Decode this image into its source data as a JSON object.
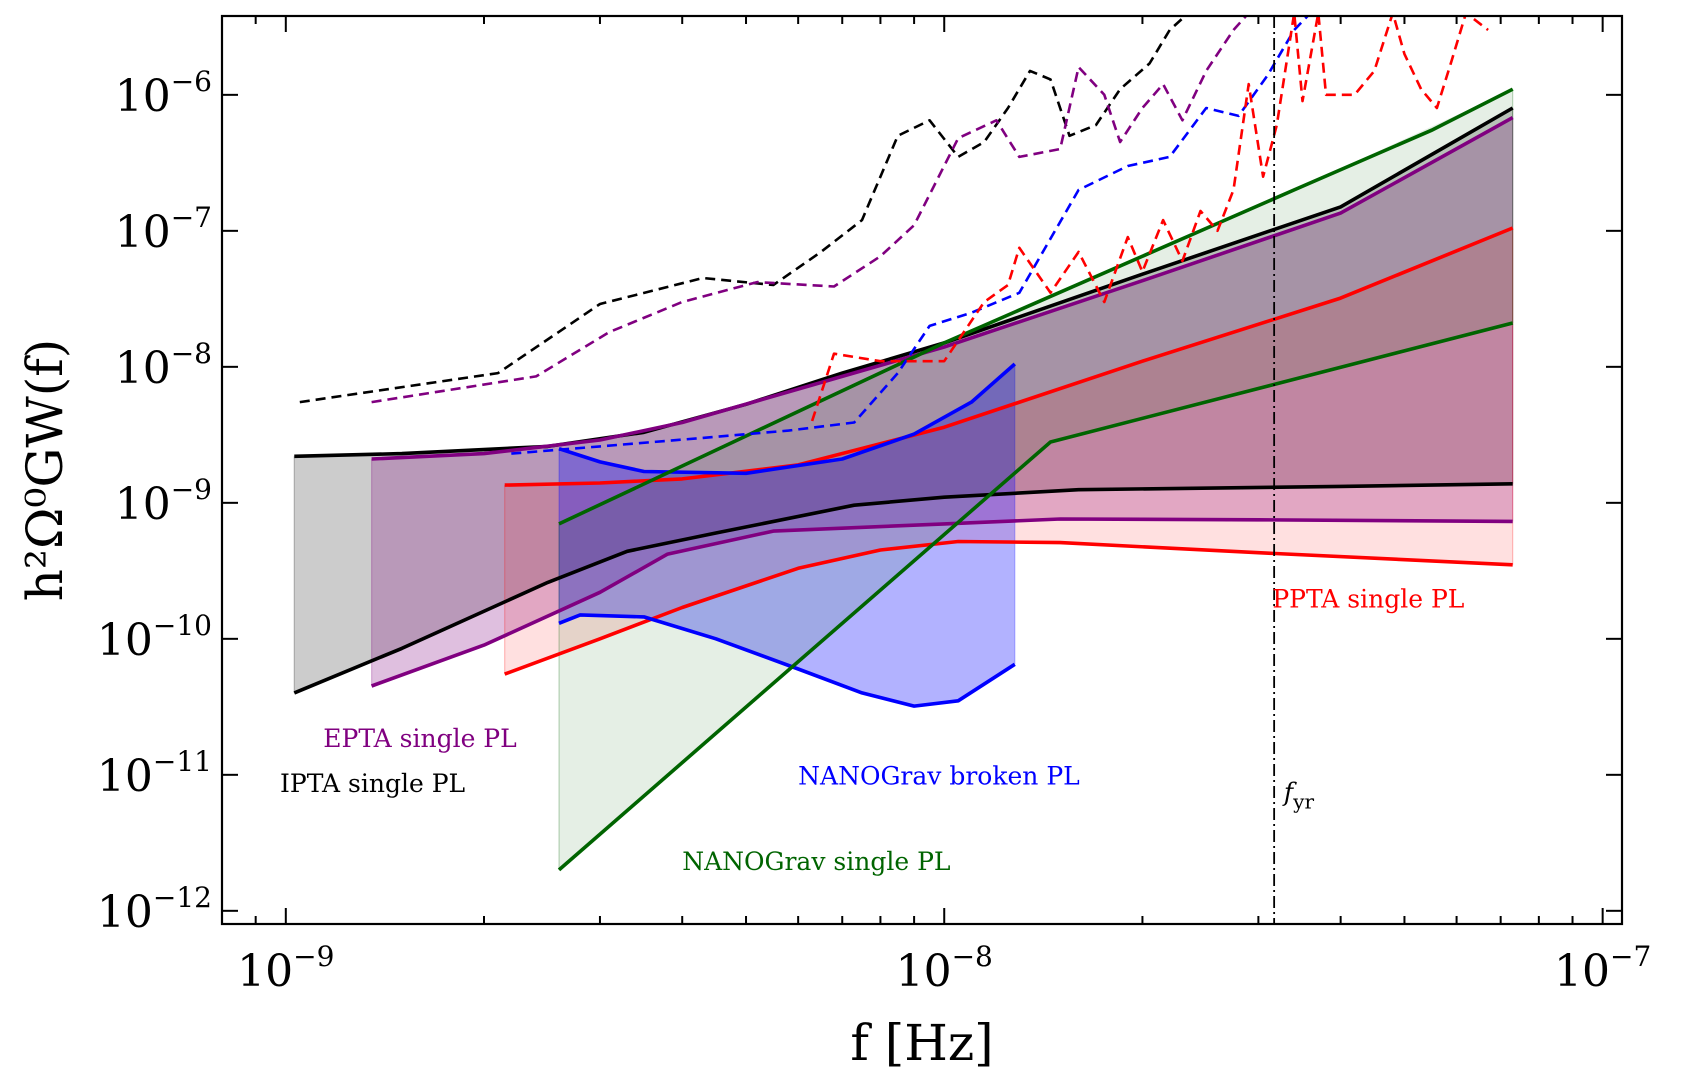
{
  "chart_data": {
    "type": "line",
    "xlabel": "f [Hz]",
    "ylabel": "h²Ω⁰GW(f)",
    "xscale": "log",
    "yscale": "log",
    "xlim": [
      8e-10,
      1.07e-07
    ],
    "ylim": [
      8e-13,
      3.8e-06
    ],
    "grid": false,
    "x_ticks": [
      {
        "value": 1e-09,
        "base": "10",
        "exp": "−9"
      },
      {
        "value": 1e-08,
        "base": "10",
        "exp": "−8"
      },
      {
        "value": 1e-07,
        "base": "10",
        "exp": "−7"
      }
    ],
    "y_ticks": [
      {
        "value": 1e-06,
        "base": "10",
        "exp": "−6"
      },
      {
        "value": 1e-07,
        "base": "10",
        "exp": "−7"
      },
      {
        "value": 1e-08,
        "base": "10",
        "exp": "−8"
      },
      {
        "value": 1e-09,
        "base": "10",
        "exp": "−9"
      },
      {
        "value": 1e-10,
        "base": "10",
        "exp": "−10"
      },
      {
        "value": 1e-11,
        "base": "10",
        "exp": "−11"
      },
      {
        "value": 1e-12,
        "base": "10",
        "exp": "−12"
      }
    ],
    "bands": [
      {
        "key": "ipta",
        "color": "#000000",
        "fill_opacity": 0.2,
        "upper": [
          [
            1.03e-09,
            2.2e-09
          ],
          [
            1.5e-09,
            2.3e-09
          ],
          [
            2.5e-09,
            2.6e-09
          ],
          [
            3.5e-09,
            3.3e-09
          ],
          [
            5e-09,
            5.3e-09
          ],
          [
            7e-09,
            9e-09
          ],
          [
            1e-08,
            1.5e-08
          ],
          [
            2e-08,
            4.8e-08
          ],
          [
            4e-08,
            1.5e-07
          ],
          [
            7.3e-08,
            8e-07
          ]
        ],
        "lower": [
          [
            1.03e-09,
            4e-11
          ],
          [
            1.5e-09,
            8.5e-11
          ],
          [
            2.5e-09,
            2.6e-10
          ],
          [
            3.3e-09,
            4.4e-10
          ],
          [
            4.5e-09,
            6e-10
          ],
          [
            7.3e-09,
            9.6e-10
          ],
          [
            1e-08,
            1.1e-09
          ],
          [
            1.6e-08,
            1.25e-09
          ],
          [
            4e-08,
            1.32e-09
          ],
          [
            7.3e-08,
            1.38e-09
          ]
        ]
      },
      {
        "key": "epta",
        "color": "#800080",
        "fill_opacity": 0.25,
        "upper": [
          [
            1.35e-09,
            2.1e-09
          ],
          [
            2e-09,
            2.3e-09
          ],
          [
            3e-09,
            2.9e-09
          ],
          [
            4e-09,
            3.9e-09
          ],
          [
            7e-09,
            8.5e-09
          ],
          [
            1e-08,
            1.4e-08
          ],
          [
            2e-08,
            4.3e-08
          ],
          [
            4e-08,
            1.35e-07
          ],
          [
            7.3e-08,
            6.8e-07
          ]
        ],
        "lower": [
          [
            1.35e-09,
            4.5e-11
          ],
          [
            2e-09,
            9e-11
          ],
          [
            3e-09,
            2.2e-10
          ],
          [
            3.8e-09,
            4.2e-10
          ],
          [
            5.5e-09,
            6.2e-10
          ],
          [
            1e-08,
            7e-10
          ],
          [
            1.5e-08,
            7.6e-10
          ],
          [
            3e-08,
            7.5e-10
          ],
          [
            7.3e-08,
            7.3e-10
          ]
        ]
      },
      {
        "key": "ppta",
        "color": "#ff0000",
        "fill_opacity": 0.12,
        "upper": [
          [
            2.15e-09,
            1.35e-09
          ],
          [
            3e-09,
            1.4e-09
          ],
          [
            4e-09,
            1.5e-09
          ],
          [
            6e-09,
            1.9e-09
          ],
          [
            1e-08,
            3.6e-09
          ],
          [
            2e-08,
            1.1e-08
          ],
          [
            4e-08,
            3.2e-08
          ],
          [
            7.3e-08,
            1.05e-07
          ]
        ],
        "lower": [
          [
            2.15e-09,
            5.5e-11
          ],
          [
            3e-09,
            1e-10
          ],
          [
            4e-09,
            1.7e-10
          ],
          [
            6e-09,
            3.3e-10
          ],
          [
            8e-09,
            4.5e-10
          ],
          [
            1.05e-08,
            5.2e-10
          ],
          [
            1.5e-08,
            5.1e-10
          ],
          [
            3e-08,
            4.3e-10
          ],
          [
            7.3e-08,
            3.5e-10
          ]
        ]
      },
      {
        "key": "nanograv-broken",
        "color": "#0000ff",
        "fill_opacity": 0.3,
        "upper": [
          [
            2.6e-09,
            2.5e-09
          ],
          [
            3e-09,
            2e-09
          ],
          [
            3.5e-09,
            1.7e-09
          ],
          [
            5e-09,
            1.65e-09
          ],
          [
            7e-09,
            2.1e-09
          ],
          [
            9e-09,
            3.2e-09
          ],
          [
            1.1e-08,
            5.5e-09
          ],
          [
            1.28e-08,
            1.05e-08
          ]
        ],
        "lower": [
          [
            2.6e-09,
            1.3e-10
          ],
          [
            2.8e-09,
            1.5e-10
          ],
          [
            3.5e-09,
            1.45e-10
          ],
          [
            4.5e-09,
            1e-10
          ],
          [
            6e-09,
            6e-11
          ],
          [
            7.5e-09,
            4e-11
          ],
          [
            9e-09,
            3.2e-11
          ],
          [
            1.05e-08,
            3.5e-11
          ],
          [
            1.28e-08,
            6.5e-11
          ]
        ]
      },
      {
        "key": "nanograv-single",
        "color": "#006400",
        "fill_opacity": 0.1,
        "upper": [
          [
            2.6e-09,
            7e-10
          ],
          [
            1e-08,
            1.5e-08
          ],
          [
            3.4e-08,
            2e-07
          ],
          [
            7.3e-08,
            1.1e-06
          ]
        ],
        "lower": [
          [
            2.6e-09,
            2e-12
          ],
          [
            1.45e-08,
            2.8e-09
          ],
          [
            7.3e-08,
            2.1e-08
          ]
        ]
      }
    ],
    "green_line": [
      [
        2.6e-09,
        7e-10
      ],
      [
        1e-08,
        1.5e-08
      ],
      [
        3.4e-08,
        2e-07
      ],
      [
        5.5e-08,
        5.5e-07
      ],
      [
        7.3e-08,
        1.1e-06
      ]
    ],
    "dashed": [
      {
        "key": "ipta",
        "color": "#000000",
        "points": [
          [
            1.05e-09,
            5.5e-09
          ],
          [
            2.1e-09,
            9e-09
          ],
          [
            3e-09,
            2.9e-08
          ],
          [
            4.3e-09,
            4.5e-08
          ],
          [
            5.5e-09,
            4e-08
          ],
          [
            6.5e-09,
            7e-08
          ],
          [
            7.5e-09,
            1.2e-07
          ],
          [
            8e-09,
            2.5e-07
          ],
          [
            8.5e-09,
            5e-07
          ],
          [
            9.5e-09,
            6.5e-07
          ],
          [
            1.05e-08,
            3.5e-07
          ],
          [
            1.15e-08,
            4.5e-07
          ],
          [
            1.25e-08,
            8e-07
          ],
          [
            1.35e-08,
            1.5e-06
          ],
          [
            1.45e-08,
            1.3e-06
          ],
          [
            1.55e-08,
            5e-07
          ],
          [
            1.7e-08,
            6e-07
          ],
          [
            1.85e-08,
            1.1e-06
          ],
          [
            2.05e-08,
            1.7e-06
          ],
          [
            2.2e-08,
            3e-06
          ],
          [
            2.35e-08,
            4e-06
          ]
        ]
      },
      {
        "key": "epta",
        "color": "#800080",
        "points": [
          [
            1.35e-09,
            5.5e-09
          ],
          [
            2.4e-09,
            8.5e-09
          ],
          [
            3.1e-09,
            1.8e-08
          ],
          [
            4e-09,
            3e-08
          ],
          [
            5.2e-09,
            4.2e-08
          ],
          [
            6.8e-09,
            3.9e-08
          ],
          [
            8e-09,
            6.5e-08
          ],
          [
            9e-09,
            1.1e-07
          ],
          [
            1.05e-08,
            4.8e-07
          ],
          [
            1.2e-08,
            6.5e-07
          ],
          [
            1.3e-08,
            3.5e-07
          ],
          [
            1.5e-08,
            4e-07
          ],
          [
            1.6e-08,
            1.6e-06
          ],
          [
            1.75e-08,
            1e-06
          ],
          [
            1.85e-08,
            4.5e-07
          ],
          [
            2e-08,
            8e-07
          ],
          [
            2.15e-08,
            1.2e-06
          ],
          [
            2.3e-08,
            6.5e-07
          ],
          [
            2.5e-08,
            1.5e-06
          ],
          [
            2.75e-08,
            3e-06
          ],
          [
            2.9e-08,
            4e-06
          ]
        ]
      },
      {
        "key": "nanograv",
        "color": "#0000ff",
        "points": [
          [
            2.2e-09,
            2.3e-09
          ],
          [
            3e-09,
            2.6e-09
          ],
          [
            4.3e-09,
            3e-09
          ],
          [
            5.8e-09,
            3.4e-09
          ],
          [
            7.3e-09,
            3.9e-09
          ],
          [
            8.5e-09,
            9e-09
          ],
          [
            9.5e-09,
            2e-08
          ],
          [
            1.1e-08,
            2.5e-08
          ],
          [
            1.3e-08,
            3.5e-08
          ],
          [
            1.6e-08,
            2e-07
          ],
          [
            1.9e-08,
            3e-07
          ],
          [
            2.2e-08,
            3.5e-07
          ],
          [
            2.5e-08,
            8e-07
          ],
          [
            2.8e-08,
            7e-07
          ],
          [
            3.1e-08,
            1.4e-06
          ],
          [
            3.4e-08,
            3e-06
          ],
          [
            3.6e-08,
            4e-06
          ]
        ]
      },
      {
        "key": "ppta",
        "color": "#ff0000",
        "points": [
          [
            6.3e-09,
            4e-09
          ],
          [
            6.8e-09,
            1.25e-08
          ],
          [
            8e-09,
            1.1e-08
          ],
          [
            1e-08,
            1.1e-08
          ],
          [
            1.15e-08,
            3e-08
          ],
          [
            1.25e-08,
            4e-08
          ],
          [
            1.3e-08,
            7.5e-08
          ],
          [
            1.45e-08,
            3.5e-08
          ],
          [
            1.6e-08,
            7e-08
          ],
          [
            1.75e-08,
            3e-08
          ],
          [
            1.9e-08,
            9e-08
          ],
          [
            2e-08,
            5e-08
          ],
          [
            2.15e-08,
            1.2e-07
          ],
          [
            2.3e-08,
            6e-08
          ],
          [
            2.45e-08,
            1.4e-07
          ],
          [
            2.6e-08,
            1e-07
          ],
          [
            2.75e-08,
            2e-07
          ],
          [
            2.9e-08,
            1.2e-06
          ],
          [
            3.05e-08,
            2.5e-07
          ],
          [
            3.2e-08,
            6e-07
          ],
          [
            3.4e-08,
            4e-06
          ],
          [
            3.5e-08,
            9e-07
          ],
          [
            3.7e-08,
            4e-06
          ],
          [
            3.8e-08,
            1e-06
          ],
          [
            4.2e-08,
            1e-06
          ],
          [
            4.5e-08,
            1.5e-06
          ],
          [
            4.8e-08,
            4e-06
          ],
          [
            5e-08,
            2e-06
          ],
          [
            5.3e-08,
            1.1e-06
          ],
          [
            5.6e-08,
            8e-07
          ],
          [
            5.9e-08,
            1.8e-06
          ],
          [
            6.2e-08,
            4e-06
          ],
          [
            6.7e-08,
            3e-06
          ]
        ]
      }
    ],
    "fyr": 3.17e-08,
    "annotations": [
      {
        "text": "PPTA single PL",
        "x": 3.15e-08,
        "y": 1.7e-10,
        "color": "#ff0000"
      },
      {
        "text": "EPTA single PL",
        "x": 1.14e-09,
        "y": 1.6e-11,
        "color": "#800080"
      },
      {
        "text": "IPTA single PL",
        "x": 9.8e-10,
        "y": 7.5e-12,
        "color": "#000000"
      },
      {
        "text": "NANOGrav broken PL",
        "x": 6e-09,
        "y": 8.5e-12,
        "color": "#0000ff"
      },
      {
        "text": "NANOGrav single PL",
        "x": 4e-09,
        "y": 2e-12,
        "color": "#006400"
      },
      {
        "text": "f",
        "sub": "yr",
        "x": 3.28e-08,
        "y": 6.5e-12,
        "color": "#000000"
      }
    ]
  }
}
